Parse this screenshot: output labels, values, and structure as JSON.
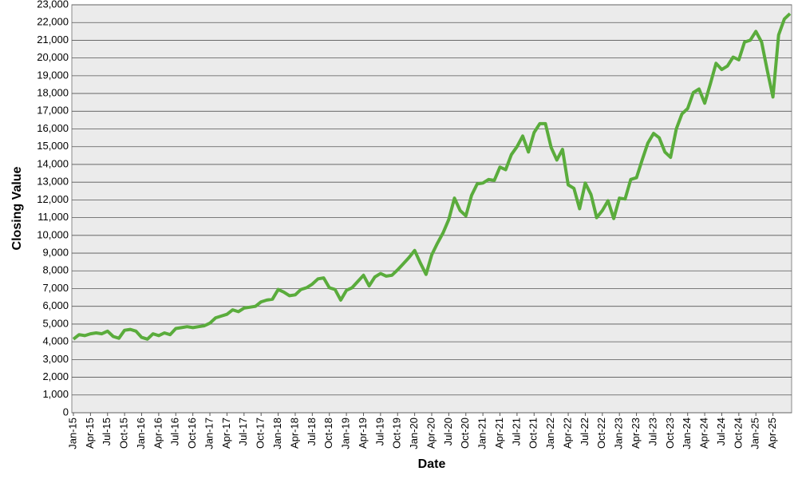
{
  "chart_data": {
    "type": "line",
    "x_label": "Date",
    "y_label": "Closing Value",
    "categories": [
      "Jan-15",
      null,
      null,
      "Apr-15",
      null,
      null,
      "Jul-15",
      null,
      null,
      "Oct-15",
      null,
      null,
      "Jan-16",
      null,
      null,
      "Apr-16",
      null,
      null,
      "Jul-16",
      null,
      null,
      "Oct-16",
      null,
      null,
      "Jan-17",
      null,
      null,
      "Apr-17",
      null,
      null,
      "Jul-17",
      null,
      null,
      "Oct-17",
      null,
      null,
      "Jan-18",
      null,
      null,
      "Apr-18",
      null,
      null,
      "Jul-18",
      null,
      null,
      "Oct-18",
      null,
      null,
      "Jan-19",
      null,
      null,
      "Apr-19",
      null,
      null,
      "Jul-19",
      null,
      null,
      "Oct-19",
      null,
      null,
      "Jan-20",
      null,
      null,
      "Apr-20",
      null,
      null,
      "Jul-20",
      null,
      null,
      "Oct-20",
      null,
      null,
      "Jan-21",
      null,
      null,
      "Apr-21",
      null,
      null,
      "Jul-21",
      null,
      null,
      "Oct-21",
      null,
      null,
      "Jan-22",
      null,
      null,
      "Apr-22",
      null,
      null,
      "Jul-22",
      null,
      null,
      "Oct-22",
      null,
      null,
      "Jan-23",
      null,
      null,
      "Apr-23",
      null,
      null,
      "Jul-23",
      null,
      null,
      "Oct-23",
      null,
      null,
      "Jan-24",
      null,
      null,
      "Apr-24",
      null,
      null,
      "Jul-24",
      null,
      null,
      "Oct-24",
      null,
      null,
      "Jan-25",
      null,
      null,
      "Apr-25",
      null,
      null,
      null
    ],
    "series": [
      {
        "color": "#5aac3c",
        "values": [
          4150,
          4400,
          4350,
          4450,
          4500,
          4450,
          4600,
          4300,
          4200,
          4650,
          4700,
          4600,
          4250,
          4150,
          4450,
          4350,
          4500,
          4400,
          4750,
          4800,
          4850,
          4800,
          4850,
          4900,
          5050,
          5350,
          5450,
          5550,
          5800,
          5700,
          5900,
          5950,
          6000,
          6250,
          6350,
          6400,
          6950,
          6800,
          6600,
          6650,
          6950,
          7050,
          7250,
          7550,
          7600,
          7050,
          6950,
          6350,
          6900,
          7050,
          7400,
          7750,
          7150,
          7650,
          7850,
          7700,
          7750,
          8050,
          8400,
          8750,
          9150,
          8450,
          7800,
          8900,
          9550,
          10150,
          10900,
          12100,
          11400,
          11100,
          12250,
          12900,
          12950,
          13150,
          13100,
          13850,
          13700,
          14550,
          15000,
          15600,
          14700,
          15800,
          16300,
          16300,
          14950,
          14250,
          14850,
          12850,
          12650,
          11500,
          12950,
          12300,
          11000,
          11400,
          11950,
          10950,
          12100,
          12050,
          13150,
          13250,
          14250,
          15200,
          15750,
          15500,
          14700,
          14400,
          16000,
          16850,
          17150,
          18050,
          18250,
          17450,
          18550,
          19700,
          19350,
          19550,
          20050,
          19900,
          20900,
          21000,
          21500,
          20900,
          19300,
          17800,
          21300,
          22200,
          22500
        ]
      }
    ],
    "ylim": [
      0,
      23000
    ],
    "yticks": [
      0,
      {
        "value": 1000,
        "label": "1,000"
      },
      {
        "value": 2000,
        "label": "2,000"
      },
      {
        "value": 3000,
        "label": "3,000"
      },
      {
        "value": 4000,
        "label": "4,000"
      },
      {
        "value": 5000,
        "label": "5,000"
      },
      {
        "value": 6000,
        "label": "6,000"
      },
      {
        "value": 7000,
        "label": "7,000"
      },
      {
        "value": 8000,
        "label": "8,000"
      },
      {
        "value": 9000,
        "label": "9,000"
      },
      {
        "value": 10000,
        "label": "10,000"
      },
      {
        "value": 11000,
        "label": "11,000"
      },
      {
        "value": 12000,
        "label": "12,000"
      },
      {
        "value": 13000,
        "label": "13,000"
      },
      {
        "value": 14000,
        "label": "14,000"
      },
      {
        "value": 15000,
        "label": "15,000"
      },
      {
        "value": 16000,
        "label": "16,000"
      },
      {
        "value": 17000,
        "label": "17,000"
      },
      {
        "value": 18000,
        "label": "18,000"
      },
      {
        "value": 19000,
        "label": "19,000"
      },
      {
        "value": 20000,
        "label": "20,000"
      },
      {
        "value": 21000,
        "label": "21,000"
      },
      {
        "value": 22000,
        "label": "22,000"
      },
      {
        "value": 23000,
        "label": "23,000"
      }
    ],
    "grid": true
  }
}
